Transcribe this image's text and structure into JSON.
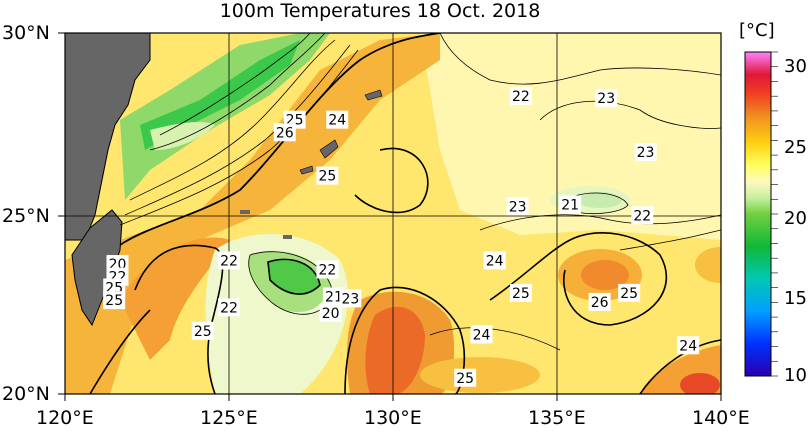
{
  "title": "100m Temperatures  18 Oct. 2018",
  "unit": "[°C]",
  "lat_labels": [
    "30°N",
    "25°N",
    "20°N"
  ],
  "lon_labels": [
    "120°E",
    "125°E",
    "130°E",
    "135°E",
    "140°E"
  ],
  "colorbar_ticks": [
    "30",
    "25",
    "20",
    "15",
    "10"
  ],
  "contour_labels": [
    {
      "lon": 127.0,
      "lat": 27.6,
      "text": "25"
    },
    {
      "lon": 128.3,
      "lat": 27.6,
      "text": "24"
    },
    {
      "lon": 126.7,
      "lat": 27.25,
      "text": "26"
    },
    {
      "lon": 128.0,
      "lat": 26.05,
      "text": "25"
    },
    {
      "lon": 133.9,
      "lat": 28.25,
      "text": "22"
    },
    {
      "lon": 136.5,
      "lat": 28.2,
      "text": "23"
    },
    {
      "lon": 137.7,
      "lat": 26.7,
      "text": "23"
    },
    {
      "lon": 133.8,
      "lat": 25.2,
      "text": "23"
    },
    {
      "lon": 135.4,
      "lat": 25.25,
      "text": "21"
    },
    {
      "lon": 137.6,
      "lat": 24.95,
      "text": "22"
    },
    {
      "lon": 125.0,
      "lat": 23.7,
      "text": "22"
    },
    {
      "lon": 128.0,
      "lat": 23.45,
      "text": "22"
    },
    {
      "lon": 133.1,
      "lat": 23.7,
      "text": "24"
    },
    {
      "lon": 121.6,
      "lat": 23.6,
      "text": "20"
    },
    {
      "lon": 121.6,
      "lat": 23.25,
      "text": "22"
    },
    {
      "lon": 121.5,
      "lat": 22.95,
      "text": "25"
    },
    {
      "lon": 121.5,
      "lat": 22.6,
      "text": "25"
    },
    {
      "lon": 133.9,
      "lat": 22.8,
      "text": "25"
    },
    {
      "lon": 128.2,
      "lat": 22.7,
      "text": "21"
    },
    {
      "lon": 128.7,
      "lat": 22.65,
      "text": "23"
    },
    {
      "lon": 128.1,
      "lat": 22.25,
      "text": "20"
    },
    {
      "lon": 125.0,
      "lat": 22.4,
      "text": "22"
    },
    {
      "lon": 136.3,
      "lat": 22.55,
      "text": "26"
    },
    {
      "lon": 137.2,
      "lat": 22.8,
      "text": "25"
    },
    {
      "lon": 124.2,
      "lat": 21.75,
      "text": "25"
    },
    {
      "lon": 132.7,
      "lat": 21.65,
      "text": "24"
    },
    {
      "lon": 139.0,
      "lat": 21.35,
      "text": "24"
    },
    {
      "lon": 132.2,
      "lat": 20.45,
      "text": "25"
    }
  ]
}
